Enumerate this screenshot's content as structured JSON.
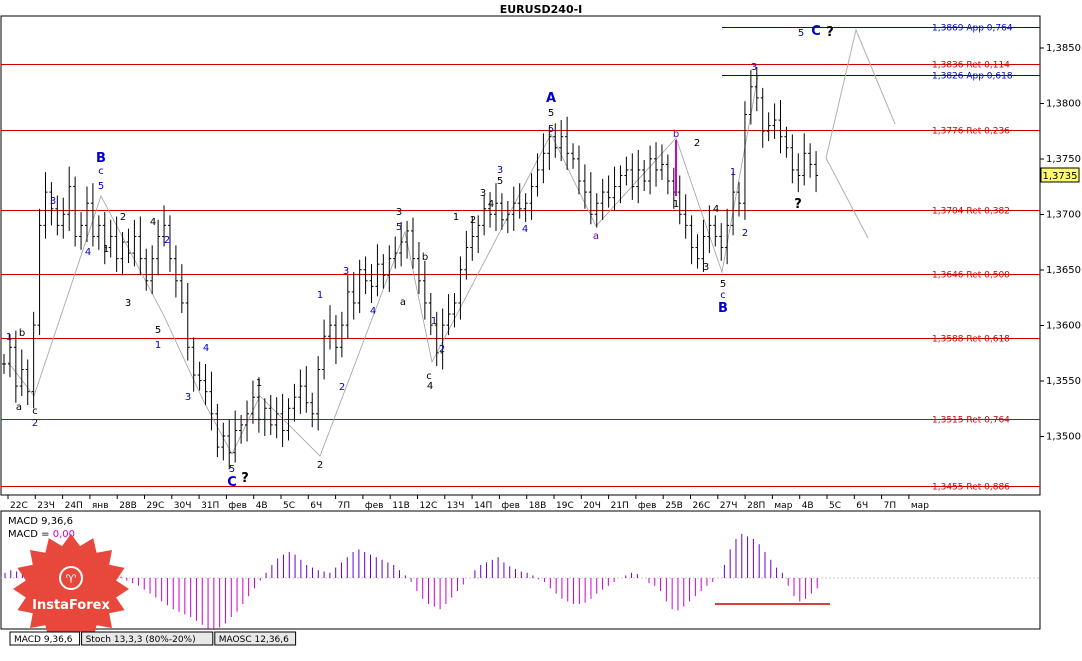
{
  "window": {
    "title": "EURUSD240-I"
  },
  "price_panel": {
    "current_price": "1,3735",
    "price_axis": [
      "1,3850",
      "1,3800",
      "1,3750",
      "1,3700",
      "1,3650",
      "1,3600",
      "1,3550",
      "1,3500"
    ],
    "levels": [
      {
        "label": "1,3869 App 0,764",
        "price": 1.3869,
        "kind": "projection"
      },
      {
        "label": "1,3836 Ret 0,114",
        "price": 1.3836,
        "kind": "retracement"
      },
      {
        "label": "1,3826 App 0,618",
        "price": 1.3826,
        "kind": "projection"
      },
      {
        "label": "1,3776 Ret 0,236",
        "price": 1.3776,
        "kind": "retracement"
      },
      {
        "label": "1,3704 Ret 0,382",
        "price": 1.3704,
        "kind": "retracement"
      },
      {
        "label": "1,3646 Ret 0,500",
        "price": 1.3646,
        "kind": "retracement"
      },
      {
        "label": "1,3588 Ret 0,618",
        "price": 1.3588,
        "kind": "retracement"
      },
      {
        "label": "1,3515 Ret 0,764",
        "price": 1.3515,
        "kind": "retracement"
      },
      {
        "label": "1,3455 Ret 0,886",
        "price": 1.3455,
        "kind": "retracement"
      }
    ],
    "colors": {
      "retracement": "#cc0000",
      "projection": "#0000cc",
      "bars": "#000000",
      "wave_blue": "#0000cc",
      "wave_black": "#000000",
      "wave_purple": "#6600aa"
    }
  },
  "time_axis": [
    "22С",
    "23Ч",
    "24П",
    "янв",
    "28В",
    "29С",
    "30Ч",
    "31П",
    "фев",
    "4В",
    "5С",
    "6Ч",
    "7П",
    "фев",
    "11В",
    "12С",
    "13Ч",
    "14П",
    "фев",
    "18В",
    "19С",
    "20Ч",
    "21П",
    "фев",
    "25В",
    "26С",
    "27Ч",
    "28П",
    "мар",
    "4В",
    "5С",
    "6Ч",
    "7П",
    "мар"
  ],
  "wave_labels": [
    {
      "text": "1",
      "color": "blue"
    },
    {
      "text": "a",
      "color": "black"
    },
    {
      "text": "b",
      "color": "black"
    },
    {
      "text": "c",
      "color": "black"
    },
    {
      "text": "2",
      "color": "blue"
    },
    {
      "text": "3",
      "color": "blue"
    },
    {
      "text": "4",
      "color": "blue"
    },
    {
      "text": "B",
      "color": "blue"
    },
    {
      "text": "c",
      "color": "blue"
    },
    {
      "text": "5",
      "color": "blue"
    },
    {
      "text": "2",
      "color": "black"
    },
    {
      "text": "1",
      "color": "black"
    },
    {
      "text": "4",
      "color": "black"
    },
    {
      "text": "3",
      "color": "black"
    },
    {
      "text": "5",
      "color": "black"
    },
    {
      "text": "2",
      "color": "blue"
    },
    {
      "text": "1",
      "color": "blue"
    },
    {
      "text": "3",
      "color": "blue"
    },
    {
      "text": "4",
      "color": "blue"
    },
    {
      "text": "5",
      "color": "blue"
    },
    {
      "text": "C",
      "color": "blue"
    },
    {
      "text": "?",
      "color": "black"
    },
    {
      "text": "1",
      "color": "black"
    },
    {
      "text": "2",
      "color": "black"
    },
    {
      "text": "1",
      "color": "blue"
    },
    {
      "text": "2",
      "color": "blue"
    },
    {
      "text": "3",
      "color": "blue"
    },
    {
      "text": "4",
      "color": "blue"
    },
    {
      "text": "5",
      "color": "blue"
    },
    {
      "text": "3",
      "color": "black"
    },
    {
      "text": "a",
      "color": "black"
    },
    {
      "text": "b",
      "color": "black"
    },
    {
      "text": "c",
      "color": "black"
    },
    {
      "text": "4",
      "color": "black"
    },
    {
      "text": "1",
      "color": "blue"
    },
    {
      "text": "2",
      "color": "blue"
    },
    {
      "text": "1",
      "color": "black"
    },
    {
      "text": "2",
      "color": "black"
    },
    {
      "text": "3",
      "color": "black"
    },
    {
      "text": "4",
      "color": "black"
    },
    {
      "text": "5",
      "color": "black"
    },
    {
      "text": "3",
      "color": "blue"
    },
    {
      "text": "4",
      "color": "blue"
    },
    {
      "text": "A",
      "color": "blue"
    },
    {
      "text": "5",
      "color": "black"
    },
    {
      "text": "5",
      "color": "blue"
    },
    {
      "text": "a",
      "color": "purple"
    },
    {
      "text": "b",
      "color": "purple"
    },
    {
      "text": "1",
      "color": "black"
    },
    {
      "text": "2",
      "color": "black"
    },
    {
      "text": "3",
      "color": "black"
    },
    {
      "text": "4",
      "color": "black"
    },
    {
      "text": "5",
      "color": "black"
    },
    {
      "text": "c",
      "color": "blue"
    },
    {
      "text": "B",
      "color": "blue"
    },
    {
      "text": "1",
      "color": "blue"
    },
    {
      "text": "2",
      "color": "blue"
    },
    {
      "text": "3",
      "color": "blue"
    },
    {
      "text": "?",
      "color": "black"
    },
    {
      "text": "5",
      "color": "blue"
    },
    {
      "text": "C",
      "color": "blue"
    },
    {
      "text": "?",
      "color": "black"
    }
  ],
  "macd_panel": {
    "line1": "MACD 9,36,6",
    "line2_prefix": "MACD = ",
    "line2_value": "0,00",
    "colors": {
      "positive": "#6600cc",
      "negative": "#cc00cc"
    }
  },
  "indicator_tabs": [
    "MACD 9,36,6",
    "Stoch 13,3,3 (80%-20%)",
    "MAOSC 12,36,6"
  ],
  "logo": {
    "text": "InstaForex"
  },
  "chart_data": {
    "type": "candlestick",
    "title": "EURUSD240-I",
    "ylim": [
      1.3455,
      1.3885
    ],
    "closes": [
      1.3565,
      1.358,
      1.3545,
      1.356,
      1.354,
      1.36,
      1.369,
      1.372,
      1.3705,
      1.369,
      1.37,
      1.3725,
      1.368,
      1.369,
      1.371,
      1.368,
      1.369,
      1.367,
      1.368,
      1.366,
      1.3675,
      1.3665,
      1.368,
      1.366,
      1.364,
      1.366,
      1.368,
      1.369,
      1.366,
      1.364,
      1.362,
      1.358,
      1.3555,
      1.355,
      1.354,
      1.352,
      1.349,
      1.35,
      1.3485,
      1.3505,
      1.351,
      1.352,
      1.3535,
      1.3515,
      1.3525,
      1.351,
      1.352,
      1.3505,
      1.3525,
      1.3535,
      1.3545,
      1.353,
      1.352,
      1.356,
      1.359,
      1.36,
      1.358,
      1.36,
      1.363,
      1.362,
      1.365,
      1.364,
      1.3635,
      1.3655,
      1.3645,
      1.366,
      1.3665,
      1.3675,
      1.3685,
      1.366,
      1.364,
      1.362,
      1.36,
      1.3575,
      1.36,
      1.361,
      1.362,
      1.365,
      1.367,
      1.368,
      1.369,
      1.3705,
      1.37,
      1.371,
      1.3695,
      1.37,
      1.371,
      1.3705,
      1.371,
      1.3725,
      1.374,
      1.3755,
      1.377,
      1.376,
      1.377,
      1.3755,
      1.375,
      1.373,
      1.372,
      1.37,
      1.371,
      1.372,
      1.3715,
      1.3725,
      1.3735,
      1.374,
      1.3725,
      1.374,
      1.373,
      1.375,
      1.374,
      1.3745,
      1.373,
      1.372,
      1.37,
      1.369,
      1.367,
      1.366,
      1.368,
      1.369,
      1.368,
      1.367,
      1.369,
      1.372,
      1.371,
      1.379,
      1.3815,
      1.3805,
      1.3775,
      1.378,
      1.3785,
      1.377,
      1.376,
      1.374,
      1.3735,
      1.3755,
      1.3745,
      1.3735
    ],
    "macd": [
      4,
      6,
      5,
      3,
      1,
      -2,
      -5,
      -8,
      -6,
      -9,
      -12,
      -10,
      -7,
      -4,
      -2,
      0,
      2,
      3,
      4,
      3,
      1,
      -2,
      -4,
      -6,
      -9,
      -12,
      -15,
      -18,
      -21,
      -24,
      -26,
      -28,
      -30,
      -33,
      -36,
      -39,
      -40,
      -38,
      -35,
      -30,
      -26,
      -20,
      -14,
      -8,
      -2,
      4,
      10,
      15,
      18,
      20,
      18,
      14,
      10,
      8,
      6,
      5,
      4,
      8,
      12,
      16,
      20,
      22,
      20,
      18,
      16,
      14,
      12,
      10,
      6,
      2,
      -3,
      -10,
      -16,
      -20,
      -22,
      -24,
      -20,
      -15,
      -10,
      -5,
      0,
      6,
      10,
      12,
      14,
      16,
      12,
      9,
      7,
      5,
      4,
      2,
      -1,
      -3,
      -8,
      -12,
      -16,
      -18,
      -20,
      -20,
      -19,
      -16,
      -12,
      -9,
      -6,
      -3,
      0,
      2,
      4,
      3,
      0,
      -4,
      -6,
      -10,
      -18,
      -24,
      -25,
      -22,
      -18,
      -14,
      -10,
      -6,
      -3,
      0,
      10,
      22,
      30,
      34,
      32,
      30,
      26,
      20,
      14,
      8,
      4,
      -6,
      -14,
      -18,
      -16,
      -12,
      -8
    ]
  }
}
